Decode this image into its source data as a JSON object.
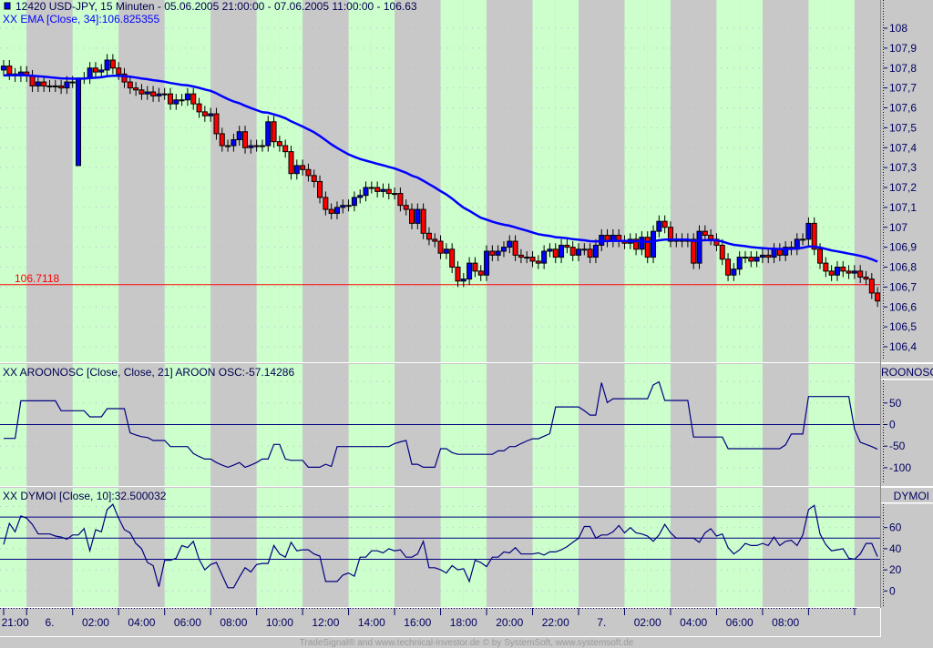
{
  "header": {
    "title": "12420  USD-JPY, 15 Minuten - 05.06.2005 21:00:00 - 07.06.2005 11:00:00 - 106.63",
    "ema_label": "XX EMA [Close, 34]:106.825355",
    "aroon_label": "XX AROONOSC [Close, Close, 21] AROON OSC:-57.14286",
    "dymoi_label": "XX DYMOI [Close, 10]:32.500032",
    "aroon_axis_title": "ROONOSC",
    "dymoi_axis_title": "DYMOI",
    "footer": "TradeSignal® and www.technical-investor.de © by SystemSoft, www.systemsoft.de"
  },
  "colors": {
    "session_green": "#ccffcc",
    "session_gray": "#c8c8c8",
    "up_candle": "#0000ff",
    "down_candle": "#ff0000",
    "ema": "#0000ff",
    "level_line": "#ff0000",
    "indicator": "#000080"
  },
  "chart_data": [
    {
      "type": "candlestick",
      "symbol": "USD-JPY",
      "interval": "15 Minuten",
      "start": "05.06.2005 21:00",
      "end": "07.06.2005 11:00",
      "ylim": [
        106.3,
        108.15
      ],
      "y_ticks": [
        "108",
        "107,9",
        "107,8",
        "107,7",
        "107,6",
        "107,5",
        "107,4",
        "107,3",
        "107,2",
        "107,1",
        "107",
        "106,9",
        "106,8",
        "106,7",
        "106,6",
        "106,5",
        "106,4"
      ],
      "y_tick_values": [
        108,
        107.9,
        107.8,
        107.7,
        107.6,
        107.5,
        107.4,
        107.3,
        107.2,
        107.1,
        107,
        106.9,
        106.8,
        106.7,
        106.6,
        106.5,
        106.4
      ],
      "x_tick_labels": [
        "21:00",
        "6.",
        "02:00",
        "04:00",
        "06:00",
        "08:00",
        "10:00",
        "12:00",
        "14:00",
        "16:00",
        "18:00",
        "20:00",
        "22:00",
        "7.",
        "02:00",
        "04:00",
        "06:00",
        "08:00"
      ],
      "grid": true,
      "special_opens": {
        "13": 107.31
      },
      "close": [
        107.81,
        107.77,
        107.76,
        107.78,
        107.76,
        107.71,
        107.73,
        107.71,
        107.71,
        107.71,
        107.7,
        107.73,
        107.73,
        107.75,
        107.75,
        107.8,
        107.78,
        107.79,
        107.84,
        107.8,
        107.77,
        107.73,
        107.7,
        107.69,
        107.67,
        107.68,
        107.66,
        107.67,
        107.67,
        107.62,
        107.64,
        107.64,
        107.67,
        107.62,
        107.58,
        107.56,
        107.57,
        107.47,
        107.41,
        107.41,
        107.44,
        107.48,
        107.4,
        107.41,
        107.41,
        107.41,
        107.53,
        107.43,
        107.41,
        107.38,
        107.27,
        107.31,
        107.29,
        107.26,
        107.23,
        107.15,
        107.09,
        107.07,
        107.1,
        107.11,
        107.11,
        107.15,
        107.16,
        107.2,
        107.2,
        107.18,
        107.19,
        107.17,
        107.17,
        107.11,
        107.09,
        107.02,
        107.09,
        106.97,
        106.94,
        106.93,
        106.87,
        106.89,
        106.8,
        106.73,
        106.74,
        106.82,
        106.78,
        106.76,
        106.88,
        106.86,
        106.88,
        106.9,
        106.93,
        106.86,
        106.85,
        106.85,
        106.83,
        106.82,
        106.88,
        106.89,
        106.85,
        106.91,
        106.9,
        106.86,
        106.89,
        106.89,
        106.85,
        106.91,
        106.96,
        106.93,
        106.96,
        106.93,
        106.92,
        106.94,
        106.89,
        106.95,
        106.85,
        106.98,
        107.03,
        107.0,
        106.93,
        106.94,
        106.93,
        106.94,
        106.82,
        106.98,
        106.96,
        106.94,
        106.91,
        106.84,
        106.76,
        106.79,
        106.85,
        106.85,
        106.83,
        106.85,
        106.86,
        106.85,
        106.89,
        106.86,
        106.9,
        106.89,
        106.94,
        106.94,
        107.02,
        106.89,
        106.82,
        106.78,
        106.76,
        106.8,
        106.78,
        106.77,
        106.78,
        106.75,
        106.74,
        106.67,
        106.63
      ],
      "ema_period": 34,
      "ema_last": 106.825355,
      "level_line": {
        "value": 106.7118,
        "label": "106.7118"
      }
    },
    {
      "type": "line",
      "name": "AROONOSC",
      "ylim": [
        -115,
        110
      ],
      "y_ticks": [
        "50",
        "0",
        "-50",
        "-100"
      ],
      "y_tick_values": [
        50,
        0,
        -50,
        -100
      ],
      "grid_values": [
        100,
        50,
        -50,
        -100
      ],
      "reference_lines": [
        0
      ],
      "values": [
        -32,
        -32,
        -32,
        55,
        55,
        55,
        55,
        55,
        55,
        55,
        32,
        32,
        32,
        32,
        32,
        18,
        18,
        18,
        37,
        37,
        37,
        37,
        -19,
        -24,
        -28,
        -30,
        -37,
        -37,
        -37,
        -51,
        -51,
        -51,
        -51,
        -67,
        -74,
        -80,
        -80,
        -88,
        -94,
        -99,
        -94,
        -88,
        -99,
        -94,
        -88,
        -80,
        -80,
        -46,
        -46,
        -80,
        -83,
        -83,
        -83,
        -99,
        -99,
        -99,
        -92,
        -97,
        -51,
        -51,
        -51,
        -51,
        -51,
        -51,
        -51,
        -51,
        -51,
        -51,
        -44,
        -40,
        -37,
        -92,
        -92,
        -99,
        -99,
        -99,
        -56,
        -56,
        -65,
        -69,
        -69,
        -69,
        -69,
        -69,
        -69,
        -69,
        -61,
        -61,
        -51,
        -51,
        -44,
        -38,
        -33,
        -33,
        -27,
        -21,
        41,
        41,
        41,
        41,
        41,
        32,
        22,
        22,
        97,
        51,
        60,
        60,
        60,
        60,
        60,
        60,
        60,
        92,
        99,
        56,
        56,
        56,
        56,
        56,
        -29,
        -29,
        -29,
        -29,
        -29,
        -29,
        -56,
        -56,
        -56,
        -56,
        -56,
        -56,
        -56,
        -56,
        -56,
        -56,
        -47,
        -22,
        -22,
        -22,
        65,
        65,
        65,
        65,
        65,
        65,
        65,
        65,
        -11,
        -41,
        -46,
        -51,
        -57.14286
      ]
    },
    {
      "type": "line",
      "name": "DYMOI",
      "ylim": [
        -10,
        90
      ],
      "y_ticks": [
        "60",
        "40",
        "20",
        "0"
      ],
      "y_tick_values": [
        60,
        40,
        20,
        0
      ],
      "grid_values": [
        80,
        60,
        40,
        20,
        0
      ],
      "reference_lines": [
        70,
        50,
        30
      ],
      "values": [
        44,
        64,
        56,
        71,
        69,
        63,
        54,
        54,
        54,
        52,
        51,
        49,
        53,
        53,
        59,
        38,
        58,
        56,
        77,
        82,
        69,
        58,
        55,
        45,
        40,
        27,
        24,
        4,
        29,
        29,
        31,
        43,
        41,
        47,
        30,
        20,
        25,
        27,
        15,
        3,
        3,
        13,
        22,
        18,
        25,
        26,
        26,
        43,
        35,
        32,
        46,
        38,
        39,
        39,
        35,
        33,
        9,
        9,
        9,
        15,
        17,
        14,
        32,
        32,
        38,
        38,
        36,
        40,
        38,
        39,
        32,
        32,
        35,
        47,
        22,
        22,
        20,
        17,
        24,
        20,
        21,
        9,
        29,
        27,
        23,
        32,
        32,
        37,
        36,
        41,
        35,
        35,
        35,
        36,
        34,
        37,
        37,
        39,
        42,
        46,
        50,
        61,
        61,
        50,
        53,
        53,
        56,
        62,
        55,
        60,
        55,
        54,
        52,
        47,
        53,
        63,
        55,
        50,
        50,
        50,
        50,
        46,
        55,
        59,
        52,
        54,
        41,
        35,
        39,
        45,
        43,
        43,
        45,
        43,
        51,
        43,
        47,
        48,
        43,
        53,
        77,
        81,
        54,
        44,
        38,
        39,
        40,
        31,
        30,
        35,
        45,
        45,
        32.500032
      ]
    }
  ]
}
